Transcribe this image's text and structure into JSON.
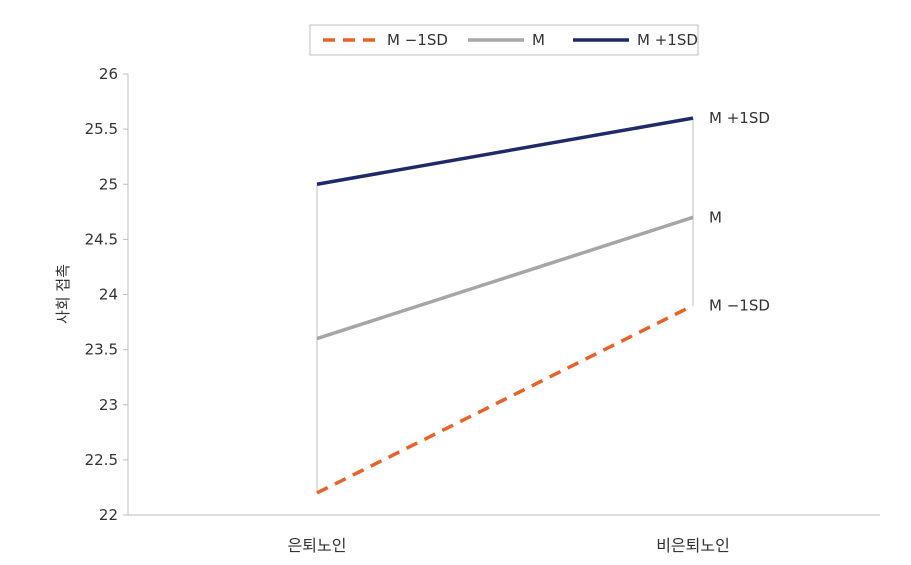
{
  "chart_data": {
    "type": "line",
    "title": "",
    "xlabel": "",
    "ylabel": "사회 접촉",
    "categories": [
      "은퇴노인",
      "비은퇴노인"
    ],
    "ylim": [
      22,
      26
    ],
    "yticks": [
      "22",
      "22.5",
      "23",
      "23.5",
      "24",
      "24.5",
      "25",
      "25.5",
      "26"
    ],
    "grid": false,
    "legend_position": "top",
    "series": [
      {
        "name": "M −1SD",
        "values": [
          22.2,
          23.9
        ],
        "color": "#E8622A",
        "dash": "dashed",
        "end_label": "M −1SD"
      },
      {
        "name": "M",
        "values": [
          23.6,
          24.7
        ],
        "color": "#A6A6A6",
        "dash": "solid",
        "end_label": "M"
      },
      {
        "name": "M +1SD",
        "values": [
          25.0,
          25.6
        ],
        "color": "#1F2A6B",
        "dash": "solid",
        "end_label": "M +1SD"
      }
    ]
  }
}
